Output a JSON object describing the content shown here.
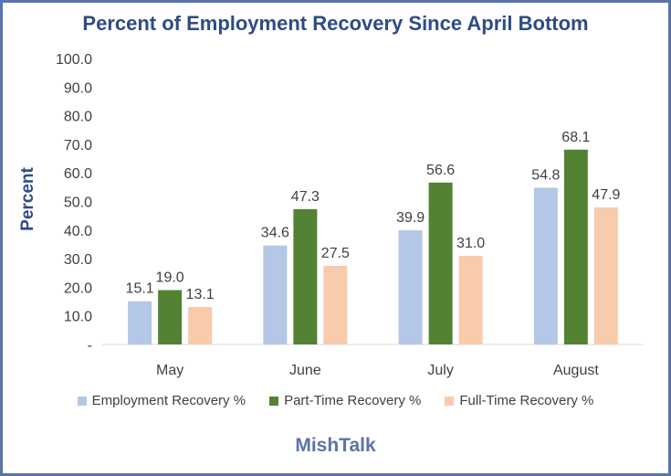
{
  "chart_data": {
    "type": "bar",
    "title": "Percent of Employment Recovery Since April Bottom",
    "ylabel": "Percent",
    "xlabel": "",
    "categories": [
      "May",
      "June",
      "July",
      "August"
    ],
    "series": [
      {
        "name": "Employment Recovery %",
        "values": [
          15.1,
          34.6,
          39.9,
          54.8
        ],
        "color": "#b4c7e7"
      },
      {
        "name": "Part-Time Recovery %",
        "values": [
          19.0,
          47.3,
          56.6,
          68.1
        ],
        "color": "#548235"
      },
      {
        "name": "Full-Time Recovery %",
        "values": [
          13.1,
          27.5,
          31.0,
          47.9
        ],
        "color": "#f8cbad"
      }
    ],
    "ylim": [
      0,
      100
    ],
    "yticks": [
      "-",
      "10.0",
      "20.0",
      "30.0",
      "40.0",
      "50.0",
      "60.0",
      "70.0",
      "80.0",
      "90.0",
      "100.0"
    ],
    "grid": false,
    "legend": "bottom",
    "colors": {
      "title": "#2e4b86",
      "border": "#5a74a8",
      "axis": "#d9d9d9",
      "text": "#404040"
    }
  },
  "footer": "MishTalk"
}
